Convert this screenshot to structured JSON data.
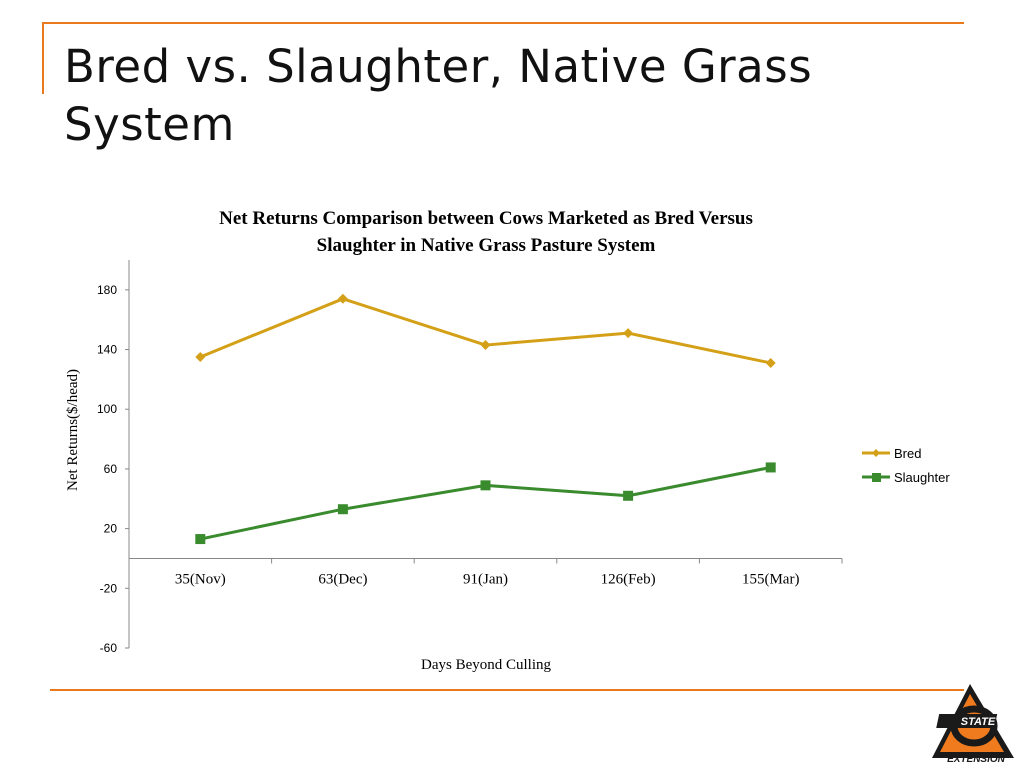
{
  "slide": {
    "title": "Bred vs. Slaughter, Native Grass System"
  },
  "logo": {
    "label": "EXTENSION",
    "accent_color": "#f07b1e"
  },
  "chart_data": {
    "type": "line",
    "title": "Net Returns Comparison between Cows Marketed as Bred Versus Slaughter in Native Grass Pasture System",
    "title_lines": [
      "Net Returns Comparison between Cows Marketed as Bred Versus",
      "Slaughter in Native Grass Pasture System"
    ],
    "xlabel": "Days Beyond Culling",
    "ylabel": "Net Returns($/head)",
    "categories": [
      "35(Nov)",
      "63(Dec)",
      "91(Jan)",
      "126(Feb)",
      "155(Mar)"
    ],
    "ylim": [
      -60,
      200
    ],
    "yticks": [
      180,
      140,
      100,
      60,
      20,
      -20,
      -60
    ],
    "grid": false,
    "legend_position": "right",
    "series": [
      {
        "name": "Bred",
        "values": [
          135,
          174,
          143,
          151,
          131
        ],
        "color": "#d4a017",
        "marker": "diamond"
      },
      {
        "name": "Slaughter",
        "values": [
          13,
          33,
          49,
          42,
          61
        ],
        "color": "#3a8a2e",
        "marker": "square"
      }
    ]
  }
}
